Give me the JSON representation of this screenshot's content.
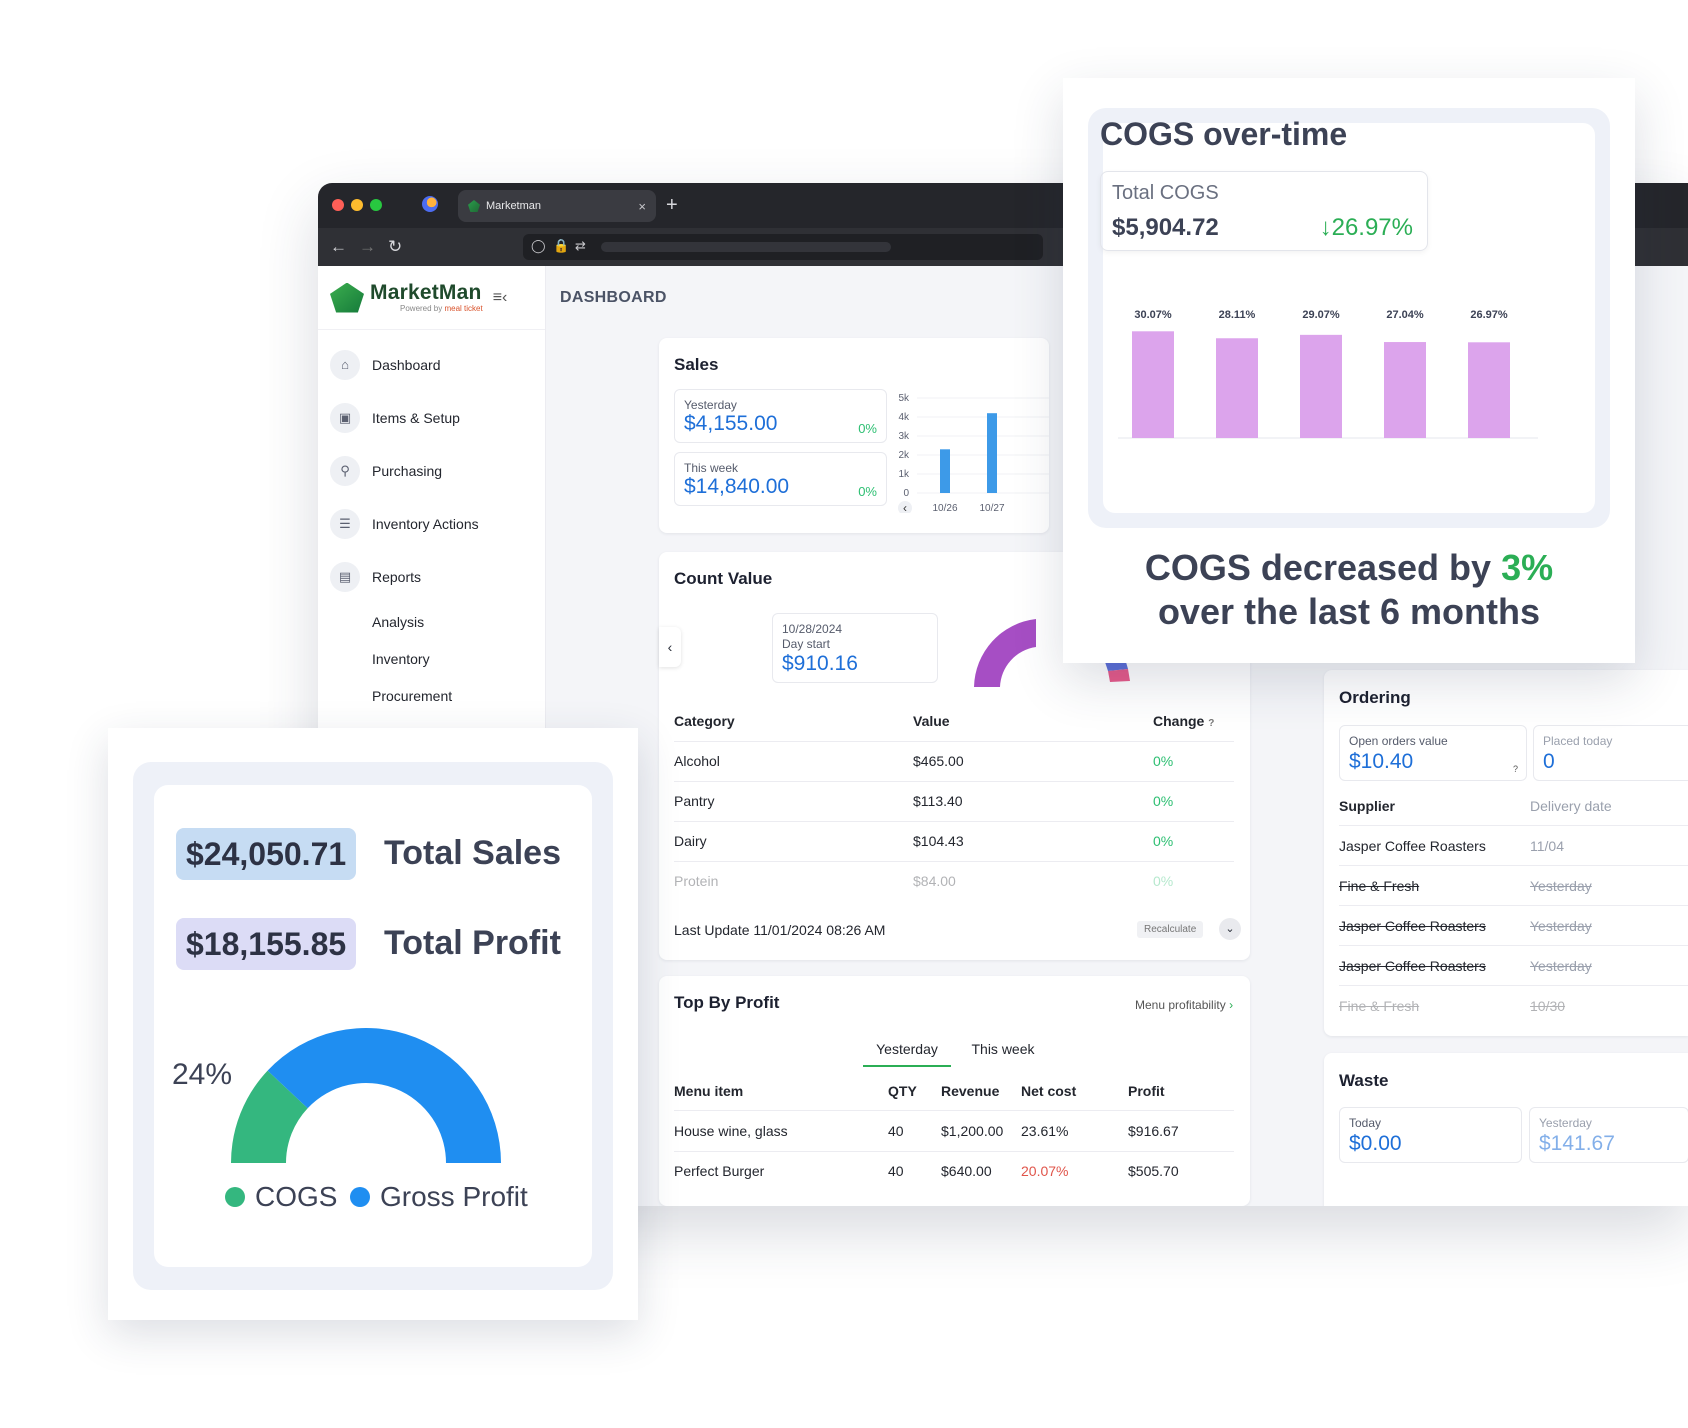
{
  "browser": {
    "tab_title": "Marketman",
    "new_tab": "+",
    "close": "×"
  },
  "app": {
    "brand": "MarketMan",
    "powered_by": "Powered by",
    "powered_brand": "meal ticket",
    "page_title": "DASHBOARD"
  },
  "sidebar": {
    "items": [
      {
        "label": "Dashboard",
        "icon": "home-icon"
      },
      {
        "label": "Items & Setup",
        "icon": "box-icon"
      },
      {
        "label": "Purchasing",
        "icon": "cart-icon"
      },
      {
        "label": "Inventory Actions",
        "icon": "list-icon"
      },
      {
        "label": "Reports",
        "icon": "chart-icon"
      }
    ],
    "sub_items": [
      "Analysis",
      "Inventory",
      "Procurement"
    ]
  },
  "sales": {
    "title": "Sales",
    "yesterday_label": "Yesterday",
    "yesterday_value": "$4,155.00",
    "yesterday_change": "0%",
    "week_label": "This week",
    "week_value": "$14,840.00",
    "week_change": "0%",
    "chart_data": {
      "type": "bar",
      "categories": [
        "10/26",
        "10/27"
      ],
      "series": [
        {
          "values": [
            2300,
            4200
          ]
        }
      ],
      "yticks": [
        "5k",
        "4k",
        "3k",
        "2k",
        "1k",
        "0"
      ],
      "ylim": [
        0,
        5000
      ]
    }
  },
  "count_value": {
    "title": "Count Value",
    "date": "10/28/2024",
    "day_label": "Day start",
    "value": "$910.16",
    "headers": [
      "Category",
      "Value",
      "Change"
    ],
    "change_help": "?",
    "rows": [
      {
        "category": "Alcohol",
        "value": "$465.00",
        "change": "0%"
      },
      {
        "category": "Pantry",
        "value": "$113.40",
        "change": "0%"
      },
      {
        "category": "Dairy",
        "value": "$104.43",
        "change": "0%"
      },
      {
        "category": "Protein",
        "value": "$84.00",
        "change": "0%"
      }
    ],
    "last_update": "Last Update 11/01/2024 08:26 AM",
    "recalc": "Recalculate"
  },
  "top_profit": {
    "title": "Top By Profit",
    "link": "Menu profitability",
    "tabs": [
      "Yesterday",
      "This week"
    ],
    "headers": [
      "Menu item",
      "QTY",
      "Revenue",
      "Net cost",
      "Profit"
    ],
    "rows": [
      {
        "item": "House wine, glass",
        "qty": "40",
        "revenue": "$1,200.00",
        "net_cost": "23.61%",
        "profit": "$916.67"
      },
      {
        "item": "Perfect Burger",
        "qty": "40",
        "revenue": "$640.00",
        "net_cost": "20.07%",
        "profit": "$505.70"
      }
    ]
  },
  "ordering": {
    "title": "Ordering",
    "open_label": "Open orders value",
    "open_value": "$10.40",
    "open_help": "?",
    "placed_label": "Placed today",
    "placed_value": "0",
    "headers": [
      "Supplier",
      "Delivery date"
    ],
    "rows": [
      {
        "supplier": "Jasper Coffee Roasters",
        "date": "11/04"
      },
      {
        "supplier": "Fine & Fresh",
        "date": "Yesterday"
      },
      {
        "supplier": "Jasper Coffee Roasters",
        "date": "Yesterday"
      },
      {
        "supplier": "Jasper Coffee Roasters",
        "date": "Yesterday"
      },
      {
        "supplier": "Fine & Fresh",
        "date": "10/30"
      }
    ]
  },
  "waste": {
    "title": "Waste",
    "today_label": "Today",
    "today_value": "$0.00",
    "yesterday_label": "Yesterday",
    "yesterday_value": "$141.67"
  },
  "cogs_card": {
    "title": "COGS over-time",
    "total_label": "Total COGS",
    "total_value": "$5,904.72",
    "total_change": "↓26.97%",
    "headline_pre": "COGS decreased by ",
    "headline_pct": "3%",
    "headline_post": "over the last 6 months",
    "chart_data": {
      "type": "bar",
      "series": [
        {
          "values": [
            30.07,
            28.11,
            29.07,
            27.04,
            26.97
          ]
        }
      ],
      "labels": [
        "30.07%",
        "28.11%",
        "29.07%",
        "27.04%",
        "26.97%"
      ]
    },
    "bar_color": "#dca4ec"
  },
  "sales_card": {
    "total_sales_value": "$24,050.71",
    "total_sales_label": "Total Sales",
    "total_profit_value": "$18,155.85",
    "total_profit_label": "Total Profit",
    "pct_label": "24%",
    "legend": [
      "COGS",
      "Gross Profit"
    ],
    "chart_data": {
      "type": "pie",
      "slices": [
        {
          "name": "COGS",
          "value": 24
        },
        {
          "name": "Gross Profit",
          "value": 76
        }
      ]
    },
    "colors": {
      "cogs": "#34b77f",
      "profit": "#1f8ef1"
    }
  }
}
